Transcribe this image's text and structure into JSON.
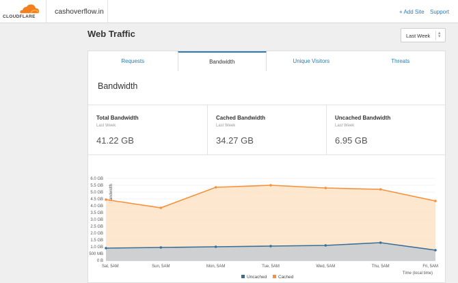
{
  "brand": {
    "logo_text": "CLOUDFLARE",
    "orange": "#f38020",
    "icon": "cloud-logo-icon"
  },
  "header": {
    "domain": "cashoverflow.in",
    "add_site": "+ Add Site",
    "support": "Support"
  },
  "page": {
    "title": "Web Traffic",
    "range": "Last Week"
  },
  "tabs": [
    {
      "label": "Requests",
      "active": false
    },
    {
      "label": "Bandwidth",
      "active": true
    },
    {
      "label": "Unique Visitors",
      "active": false
    },
    {
      "label": "Threats",
      "active": false
    }
  ],
  "section": {
    "title": "Bandwidth"
  },
  "stats": [
    {
      "label": "Total Bandwidth",
      "sub": "Last Week",
      "value": "41.22 GB"
    },
    {
      "label": "Cached Bandwidth",
      "sub": "Last Week",
      "value": "34.27 GB"
    },
    {
      "label": "Uncached Bandwidth",
      "sub": "Last Week",
      "value": "6.95 GB"
    }
  ],
  "chart_data": {
    "type": "area",
    "ylabel": "Bandwidth",
    "xlabel": "Time (local time)",
    "y_ticks": [
      "0 B",
      "500 MB",
      "1.0 GB",
      "1.5 GB",
      "2.0 GB",
      "2.5 GB",
      "3.0 GB",
      "3.5 GB",
      "4.0 GB",
      "4.5 GB",
      "5.0 GB",
      "5.5 GB",
      "6.0 GB"
    ],
    "ylim": [
      0,
      6.0
    ],
    "categories": [
      "Sat, 5AM",
      "Sun, 5AM",
      "Mon, 5AM",
      "Tue, 5AM",
      "Wed, 5AM",
      "Thu, 5AM",
      "Fri, 5AM"
    ],
    "series": [
      {
        "name": "Uncached",
        "color": "#3b6e94",
        "values": [
          0.9,
          0.95,
          1.0,
          1.05,
          1.1,
          1.3,
          0.75
        ]
      },
      {
        "name": "Cached",
        "color": "#f5913a",
        "values": [
          4.45,
          3.85,
          5.35,
          5.5,
          5.3,
          5.2,
          4.35
        ]
      }
    ],
    "legend_position": "bottom-center",
    "grid": true
  }
}
